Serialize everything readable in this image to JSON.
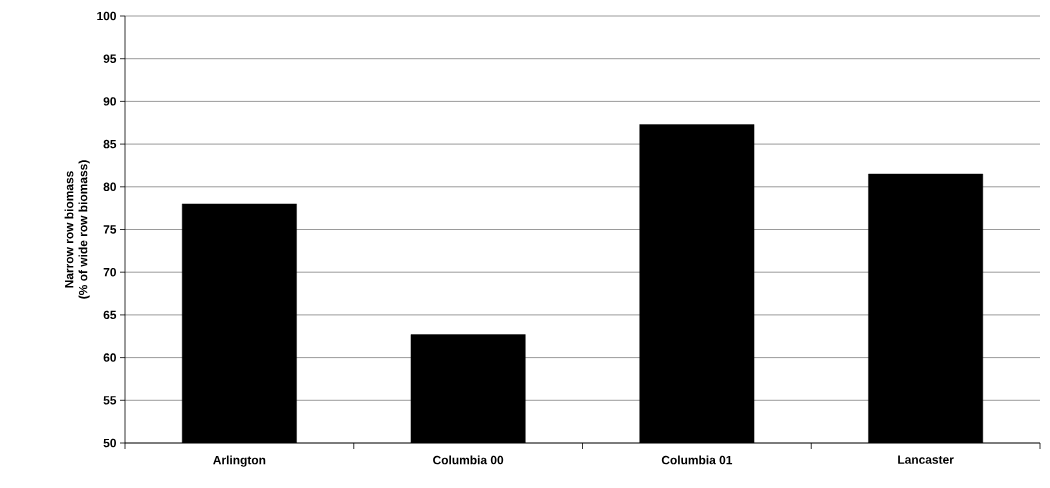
{
  "chart_data": {
    "type": "bar",
    "ylabel": "Narrow row biomass\n(% of wide row biomass)",
    "categories": [
      "Arlington",
      "Columbia 00",
      "Columbia 01",
      "Lancaster"
    ],
    "values": [
      78.0,
      62.7,
      87.3,
      81.5
    ],
    "color": "#000000",
    "ylim": [
      50,
      100
    ],
    "yticks": [
      50,
      55,
      60,
      65,
      70,
      75,
      80,
      85,
      90,
      95,
      100
    ],
    "grid": "y"
  }
}
